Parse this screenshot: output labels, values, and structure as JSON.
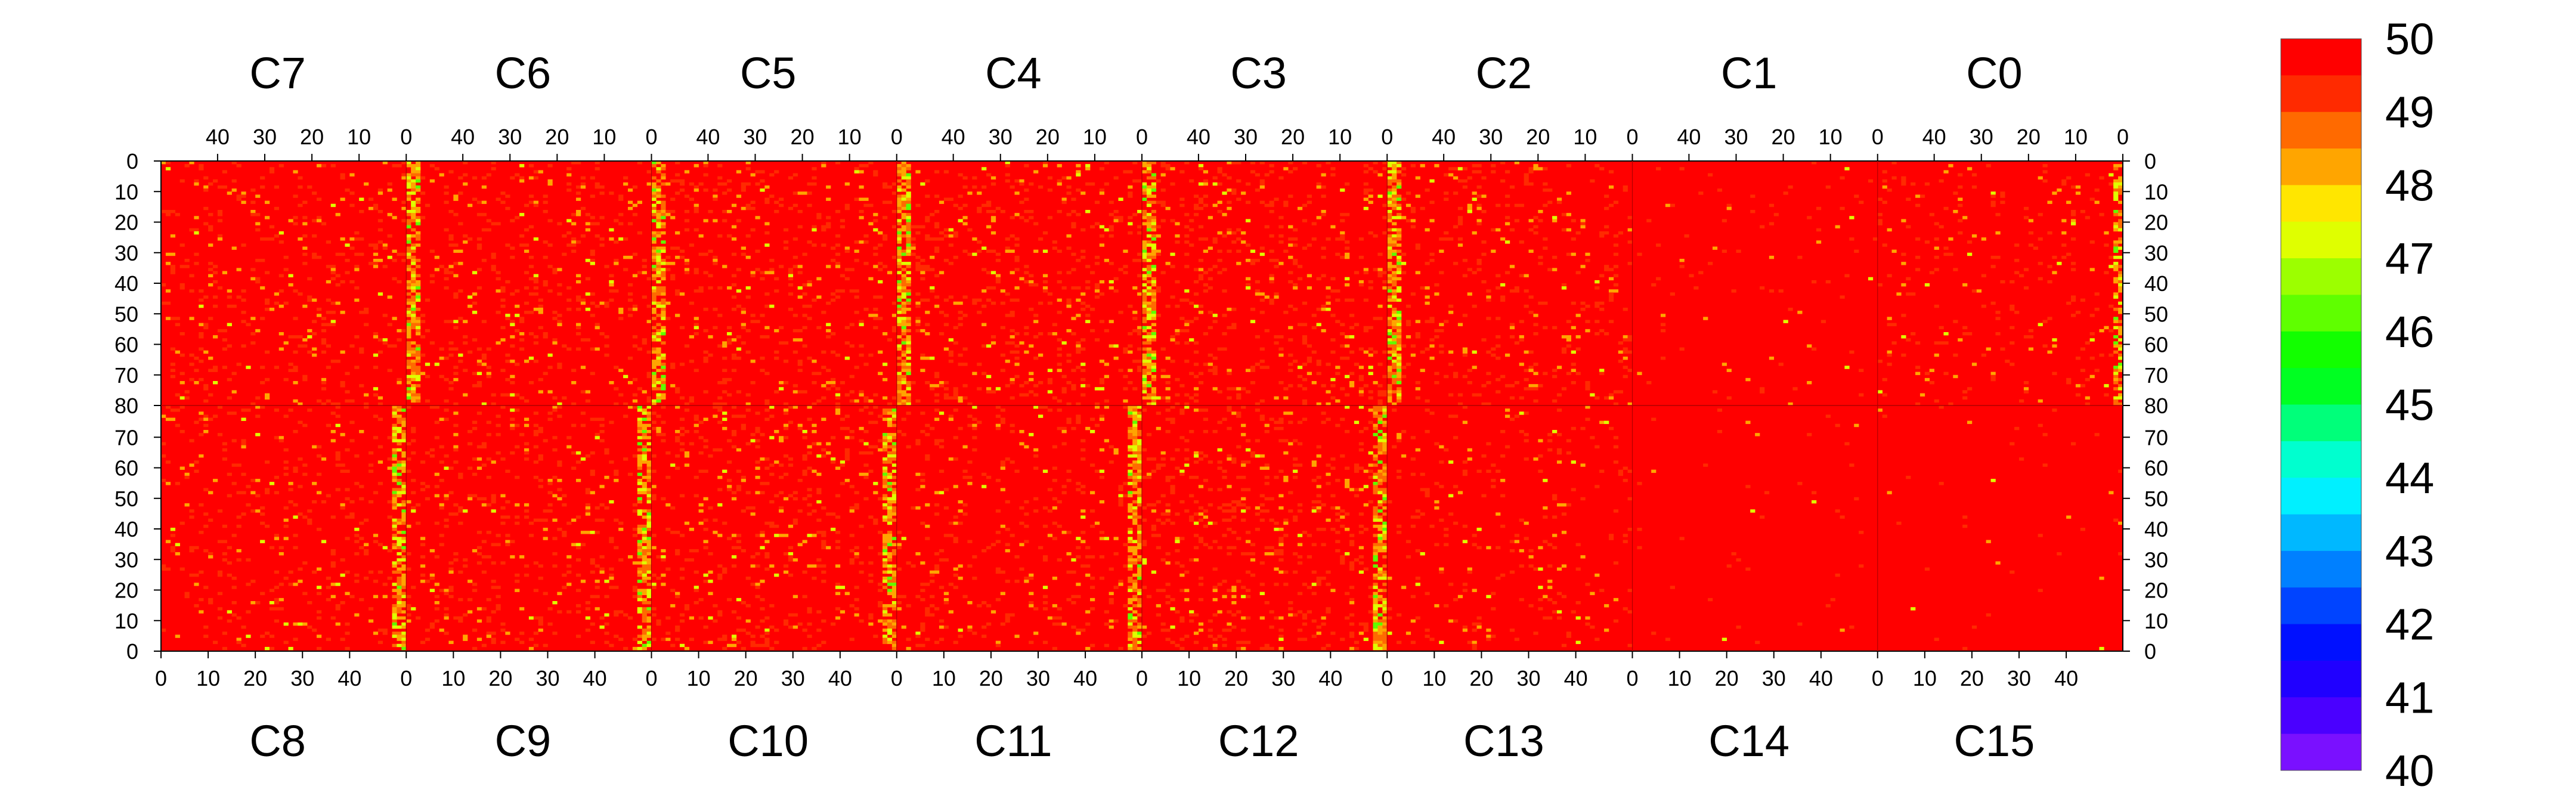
{
  "chart_data": {
    "type": "heatmap",
    "title": "",
    "xlabel": "",
    "ylabel": "",
    "top_chips": [
      "C7",
      "C6",
      "C5",
      "C4",
      "C3",
      "C2",
      "C1",
      "C0"
    ],
    "bottom_chips": [
      "C8",
      "C9",
      "C10",
      "C11",
      "C12",
      "C13",
      "C14",
      "C15"
    ],
    "columns_per_chip": 52,
    "rows_per_half": 80,
    "top_x_ticks": [
      "40",
      "30",
      "20",
      "10",
      "0"
    ],
    "top_x_tick_values": [
      40,
      30,
      20,
      10,
      0
    ],
    "bottom_x_ticks": [
      "0",
      "10",
      "20",
      "30",
      "40"
    ],
    "bottom_x_tick_values": [
      0,
      10,
      20,
      30,
      40
    ],
    "y_ticks_top": [
      "0",
      "10",
      "20",
      "30",
      "40",
      "50",
      "60",
      "70",
      "80"
    ],
    "y_ticks_bottom": [
      "70",
      "60",
      "50",
      "40",
      "30",
      "20",
      "10",
      "0"
    ],
    "color_scale": {
      "min": 40,
      "max": 50,
      "labels": [
        "50",
        "49",
        "48",
        "47",
        "46",
        "45",
        "44",
        "43",
        "42",
        "41",
        "40"
      ],
      "colors": [
        "#ff0000",
        "#ff2a00",
        "#ff6a00",
        "#ffa500",
        "#ffe600",
        "#dfff00",
        "#9cff00",
        "#5fff00",
        "#12ff00",
        "#00ff22",
        "#00ff7a",
        "#00ffcf",
        "#00f0ff",
        "#00b8ff",
        "#0080ff",
        "#0044ff",
        "#0010ff",
        "#2000ff",
        "#4a00ff",
        "#7a10ff"
      ]
    },
    "colored_values": [
      50,
      49,
      48,
      47,
      46,
      45
    ],
    "typical_value": 50,
    "high_variation_columns_note": "Columns near pixel index 0 of chips C6, C5, C4, C3, C2 show frequent values in the 46-49 range",
    "chips": [
      {
        "name": "C7",
        "mean_level": 49.7,
        "noise_fraction": 0.1
      },
      {
        "name": "C6",
        "mean_level": 49.6,
        "noise_fraction": 0.12
      },
      {
        "name": "C5",
        "mean_level": 49.6,
        "noise_fraction": 0.12
      },
      {
        "name": "C4",
        "mean_level": 49.6,
        "noise_fraction": 0.14
      },
      {
        "name": "C3",
        "mean_level": 49.6,
        "noise_fraction": 0.13
      },
      {
        "name": "C2",
        "mean_level": 49.7,
        "noise_fraction": 0.1
      },
      {
        "name": "C1",
        "mean_level": 49.95,
        "noise_fraction": 0.02
      },
      {
        "name": "C0",
        "mean_level": 49.8,
        "noise_fraction": 0.07
      },
      {
        "name": "C8",
        "mean_level": 49.7,
        "noise_fraction": 0.09
      },
      {
        "name": "C9",
        "mean_level": 49.6,
        "noise_fraction": 0.11
      },
      {
        "name": "C10",
        "mean_level": 49.6,
        "noise_fraction": 0.12
      },
      {
        "name": "C11",
        "mean_level": 49.7,
        "noise_fraction": 0.1
      },
      {
        "name": "C12",
        "mean_level": 49.6,
        "noise_fraction": 0.13
      },
      {
        "name": "C13",
        "mean_level": 49.8,
        "noise_fraction": 0.06
      },
      {
        "name": "C14",
        "mean_level": 49.97,
        "noise_fraction": 0.01
      },
      {
        "name": "C15",
        "mean_level": 49.97,
        "noise_fraction": 0.01
      }
    ],
    "grid": false,
    "legend": "right"
  }
}
